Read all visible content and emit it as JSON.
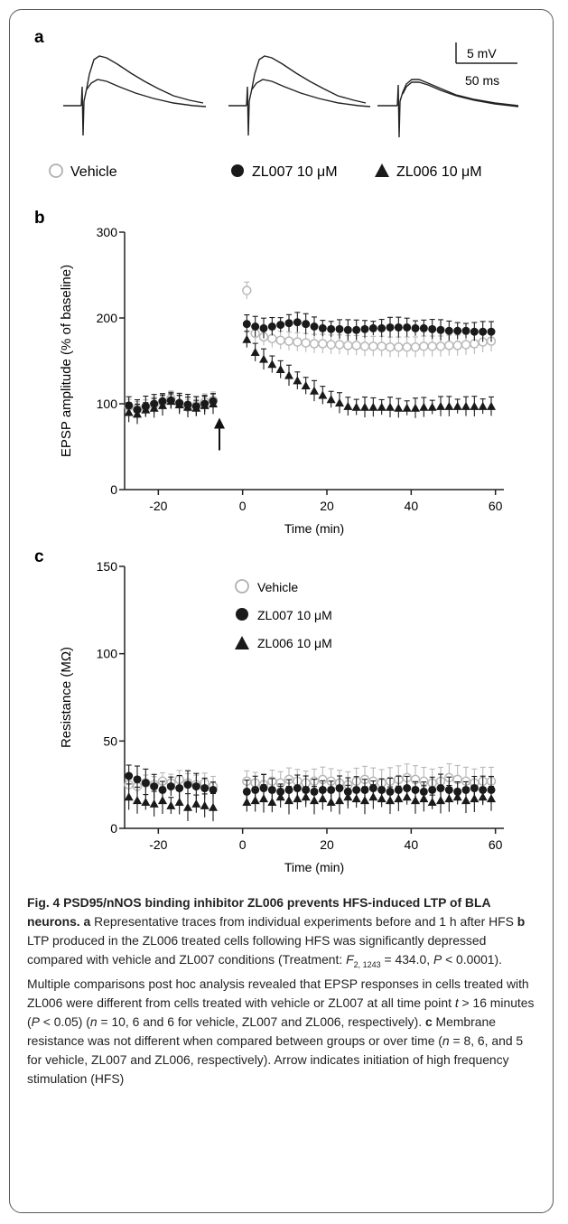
{
  "panels": {
    "a": {
      "label": "a",
      "scale_bar": {
        "voltage": "5 mV",
        "time": "50 ms"
      },
      "legend": [
        {
          "marker": "open-circle",
          "text": "Vehicle"
        },
        {
          "marker": "filled-circle",
          "text": "ZL007 10 μM"
        },
        {
          "marker": "filled-triangle",
          "text": "ZL006 10 μM"
        }
      ]
    },
    "b": {
      "label": "b"
    },
    "c": {
      "label": "c"
    }
  },
  "chart_data": [
    {
      "panel": "b",
      "type": "scatter",
      "xlabel": "Time (min)",
      "ylabel": "EPSP amplitude (% of baseline)",
      "xlim": [
        -28,
        62
      ],
      "ylim": [
        0,
        300
      ],
      "xticks": [
        -20,
        0,
        20,
        40,
        60
      ],
      "xtick_labels": [
        "-20",
        "0",
        "20",
        "40",
        "60"
      ],
      "yticks": [
        0,
        100,
        200,
        300
      ],
      "ytick_labels": [
        "0",
        "100",
        "200",
        "300"
      ],
      "annotations": [
        {
          "type": "arrow",
          "x": -5.5,
          "label": "HFS"
        }
      ],
      "series": [
        {
          "name": "Vehicle",
          "marker": "open-circle",
          "color": "#b8b8b8",
          "x": [
            -27,
            -25,
            -23,
            -21,
            -19,
            -17,
            -15,
            -13,
            -11,
            -9,
            -7,
            1,
            3,
            5,
            7,
            9,
            11,
            13,
            15,
            17,
            19,
            21,
            23,
            25,
            27,
            29,
            31,
            33,
            35,
            37,
            39,
            41,
            43,
            45,
            47,
            49,
            51,
            53,
            55,
            57,
            59
          ],
          "y": [
            97,
            94,
            96,
            99,
            102,
            106,
            100,
            96,
            98,
            102,
            104,
            232,
            182,
            178,
            176,
            174,
            173,
            172,
            171,
            170,
            170,
            169,
            169,
            168,
            168,
            167,
            167,
            167,
            166,
            166,
            166,
            166,
            167,
            167,
            167,
            168,
            168,
            169,
            170,
            172,
            173
          ]
        },
        {
          "name": "ZL007 10 μM",
          "marker": "filled-circle",
          "color": "#1a1a1a",
          "x": [
            -27,
            -25,
            -23,
            -21,
            -19,
            -17,
            -15,
            -13,
            -11,
            -9,
            -7,
            1,
            3,
            5,
            7,
            9,
            11,
            13,
            15,
            17,
            19,
            21,
            23,
            25,
            27,
            29,
            31,
            33,
            35,
            37,
            39,
            41,
            43,
            45,
            47,
            49,
            51,
            53,
            55,
            57,
            59
          ],
          "y": [
            98,
            93,
            97,
            100,
            103,
            104,
            101,
            99,
            97,
            100,
            103,
            193,
            190,
            188,
            190,
            192,
            194,
            195,
            193,
            190,
            188,
            187,
            187,
            186,
            186,
            187,
            188,
            188,
            189,
            189,
            189,
            188,
            188,
            187,
            186,
            185,
            185,
            185,
            184,
            184,
            184
          ]
        },
        {
          "name": "ZL006 10 μM",
          "marker": "filled-triangle",
          "color": "#1a1a1a",
          "x": [
            -27,
            -25,
            -23,
            -21,
            -19,
            -17,
            -15,
            -13,
            -11,
            -9,
            -7,
            1,
            3,
            5,
            7,
            9,
            11,
            13,
            15,
            17,
            19,
            21,
            23,
            25,
            27,
            29,
            31,
            33,
            35,
            37,
            39,
            41,
            43,
            45,
            47,
            49,
            51,
            53,
            55,
            57,
            59
          ],
          "y": [
            90,
            88,
            93,
            95,
            98,
            103,
            99,
            96,
            95,
            98,
            100,
            175,
            160,
            152,
            146,
            140,
            133,
            127,
            121,
            115,
            110,
            105,
            101,
            97,
            96,
            96,
            96,
            96,
            96,
            95,
            95,
            95,
            96,
            96,
            97,
            97,
            97,
            97,
            97,
            97,
            97
          ]
        }
      ]
    },
    {
      "panel": "c",
      "type": "scatter",
      "xlabel": "Time (min)",
      "ylabel": "Resistance (MΩ)",
      "xlim": [
        -28,
        62
      ],
      "ylim": [
        0,
        150
      ],
      "xticks": [
        -20,
        0,
        20,
        40,
        60
      ],
      "xtick_labels": [
        "-20",
        "0",
        "20",
        "40",
        "60"
      ],
      "yticks": [
        0,
        50,
        100,
        150
      ],
      "ytick_labels": [
        "0",
        "50",
        "100",
        "150"
      ],
      "legend_position": "top-center",
      "series": [
        {
          "name": "Vehicle",
          "marker": "open-circle",
          "color": "#b8b8b8",
          "x": [
            -27,
            -25,
            -23,
            -21,
            -19,
            -17,
            -15,
            -13,
            -11,
            -9,
            -7,
            1,
            3,
            5,
            7,
            9,
            11,
            13,
            15,
            17,
            19,
            21,
            23,
            25,
            27,
            29,
            31,
            33,
            35,
            37,
            39,
            41,
            43,
            45,
            47,
            49,
            51,
            53,
            55,
            57,
            59
          ],
          "y": [
            25,
            24,
            26,
            25,
            27,
            26,
            28,
            26,
            25,
            26,
            24,
            27,
            26,
            25,
            27,
            26,
            28,
            27,
            26,
            27,
            28,
            27,
            26,
            25,
            27,
            28,
            27,
            26,
            27,
            28,
            29,
            28,
            27,
            26,
            27,
            29,
            28,
            27,
            26,
            27,
            27
          ]
        },
        {
          "name": "ZL007 10 μM",
          "marker": "filled-circle",
          "color": "#1a1a1a",
          "x": [
            -27,
            -25,
            -23,
            -21,
            -19,
            -17,
            -15,
            -13,
            -11,
            -9,
            -7,
            1,
            3,
            5,
            7,
            9,
            11,
            13,
            15,
            17,
            19,
            21,
            23,
            25,
            27,
            29,
            31,
            33,
            35,
            37,
            39,
            41,
            43,
            45,
            47,
            49,
            51,
            53,
            55,
            57,
            59
          ],
          "y": [
            30,
            28,
            26,
            24,
            22,
            24,
            23,
            25,
            24,
            23,
            22,
            21,
            22,
            23,
            22,
            21,
            22,
            23,
            22,
            21,
            22,
            22,
            23,
            21,
            22,
            22,
            23,
            22,
            21,
            22,
            23,
            22,
            21,
            22,
            23,
            22,
            21,
            22,
            23,
            22,
            22
          ]
        },
        {
          "name": "ZL006 10 μM",
          "marker": "filled-triangle",
          "color": "#1a1a1a",
          "x": [
            -27,
            -25,
            -23,
            -21,
            -19,
            -17,
            -15,
            -13,
            -11,
            -9,
            -7,
            1,
            3,
            5,
            7,
            9,
            11,
            13,
            15,
            17,
            19,
            21,
            23,
            25,
            27,
            29,
            31,
            33,
            35,
            37,
            39,
            41,
            43,
            45,
            47,
            49,
            51,
            53,
            55,
            57,
            59
          ],
          "y": [
            18,
            16,
            15,
            14,
            16,
            13,
            15,
            12,
            14,
            13,
            12,
            15,
            16,
            17,
            15,
            18,
            16,
            17,
            18,
            16,
            17,
            15,
            16,
            18,
            17,
            16,
            18,
            17,
            16,
            17,
            18,
            16,
            17,
            15,
            16,
            17,
            18,
            16,
            17,
            18,
            17
          ]
        }
      ]
    }
  ],
  "caption": {
    "figure_label": "Fig. 4",
    "title": "PSD95/nNOS binding inhibitor ZL006 prevents HFS-induced LTP of BLA neurons.",
    "a_label": "a",
    "a_text": "Representative traces from individual experiments before and 1 h after HFS",
    "b_label": "b",
    "b_text_1": "LTP produced in the ZL006 treated cells following HFS was significantly depressed compared with vehicle and ZL007 conditions (Treatment: ",
    "b_stat_F": "F",
    "b_stat_sub": "2, 1243",
    "b_text_2": " = 434.0, ",
    "b_stat_P": "P",
    "b_text_3": " < 0.0001). Multiple comparisons post hoc analysis revealed that EPSP responses in cells treated with ZL006 were different from cells treated with vehicle or ZL007 at all time point ",
    "b_stat_t": "t",
    "b_text_4": " > 16 minutes (",
    "b_stat_P2": "P",
    "b_text_5": " < 0.05) (",
    "b_stat_n": "n",
    "b_text_6": " = 10, 6 and 6 for vehicle, ZL007 and ZL006, respectively).",
    "c_label": "c",
    "c_text_1": "Membrane resistance was not different when compared between groups or over time (",
    "c_stat_n": "n",
    "c_text_2": " = 8, 6, and 5 for vehicle, ZL007 and ZL006, respectively). Arrow indicates initiation of high frequency stimulation (HFS)"
  }
}
